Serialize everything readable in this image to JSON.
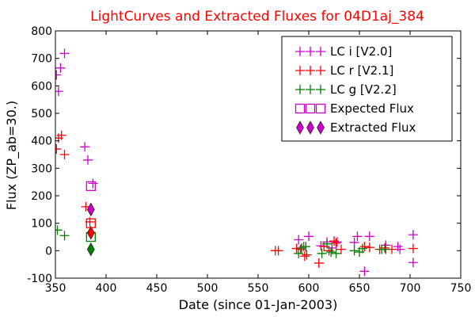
{
  "chart_data": {
    "type": "scatter",
    "title": "LightCurves and Extracted Fluxes for 04D1aj_384",
    "xlabel": "Date (since 01-Jan-2003)",
    "ylabel": "Flux (ZP_ab=30.)",
    "xlim": [
      350,
      750
    ],
    "ylim": [
      -100,
      800
    ],
    "xticks": [
      350,
      400,
      450,
      500,
      550,
      600,
      650,
      700,
      750
    ],
    "yticks": [
      -100,
      0,
      100,
      200,
      300,
      400,
      500,
      600,
      700,
      800
    ],
    "grid": false,
    "legend_position": "top-right",
    "colors": {
      "title": "#ff0000",
      "lc_i": "#cc00cc",
      "lc_r": "#ff0000",
      "lc_g": "#008000",
      "expected_i": "#cc00cc",
      "expected_r": "#ff0000",
      "expected_g": "#008000",
      "extracted_i": "#cc00cc",
      "extracted_r": "#ff0000",
      "extracted_g": "#008000"
    },
    "series": [
      {
        "name": "LC i [V2.0]",
        "marker": "plus",
        "color": "#cc00cc",
        "points": [
          [
            351,
            640
          ],
          [
            353,
            580
          ],
          [
            355,
            665
          ],
          [
            359,
            718
          ],
          [
            379,
            378
          ],
          [
            382,
            330
          ],
          [
            387,
            245
          ],
          [
            590,
            40
          ],
          [
            595,
            15
          ],
          [
            600,
            52
          ],
          [
            612,
            18
          ],
          [
            618,
            32
          ],
          [
            623,
            10
          ],
          [
            628,
            32
          ],
          [
            645,
            30
          ],
          [
            648,
            52
          ],
          [
            655,
            -75
          ],
          [
            660,
            52
          ],
          [
            676,
            20
          ],
          [
            688,
            15
          ],
          [
            690,
            5
          ],
          [
            703,
            58
          ],
          [
            703,
            -43
          ]
        ]
      },
      {
        "name": "LC r [V2.1]",
        "marker": "plus",
        "color": "#ff0000",
        "points": [
          [
            351,
            370
          ],
          [
            353,
            410
          ],
          [
            356,
            420
          ],
          [
            359,
            350
          ],
          [
            380,
            160
          ],
          [
            384,
            105
          ],
          [
            567,
            0
          ],
          [
            570,
            0
          ],
          [
            588,
            8
          ],
          [
            592,
            5
          ],
          [
            596,
            -20
          ],
          [
            598,
            -15
          ],
          [
            610,
            -45
          ],
          [
            615,
            15
          ],
          [
            620,
            0
          ],
          [
            625,
            35
          ],
          [
            627,
            28
          ],
          [
            632,
            5
          ],
          [
            655,
            15
          ],
          [
            660,
            12
          ],
          [
            670,
            5
          ],
          [
            675,
            10
          ],
          [
            682,
            5
          ],
          [
            703,
            8
          ]
        ]
      },
      {
        "name": "LC g [V2.2]",
        "marker": "plus",
        "color": "#008000",
        "points": [
          [
            352,
            75
          ],
          [
            359,
            55
          ],
          [
            590,
            -10
          ],
          [
            593,
            10
          ],
          [
            597,
            15
          ],
          [
            613,
            -10
          ],
          [
            618,
            25
          ],
          [
            622,
            -5
          ],
          [
            627,
            -10
          ],
          [
            645,
            0
          ],
          [
            650,
            -5
          ],
          [
            653,
            8
          ],
          [
            672,
            5
          ],
          [
            676,
            5
          ]
        ]
      },
      {
        "name": "Expected Flux",
        "marker": "square-open",
        "points": [
          {
            "x": 385,
            "y": 235,
            "color": "#cc00cc"
          },
          {
            "x": 385,
            "y": 100,
            "color": "#ff0000"
          },
          {
            "x": 385,
            "y": 50,
            "color": "#008000"
          }
        ]
      },
      {
        "name": "Extracted Flux",
        "marker": "diamond-filled",
        "points": [
          {
            "x": 385,
            "y": 150,
            "color": "#cc00cc"
          },
          {
            "x": 385,
            "y": 65,
            "color": "#ff0000"
          },
          {
            "x": 385,
            "y": 5,
            "color": "#008000"
          }
        ]
      }
    ],
    "legend": [
      {
        "label": "LC i [V2.0]",
        "marker": "plus",
        "color": "#cc00cc"
      },
      {
        "label": "LC r [V2.1]",
        "marker": "plus",
        "color": "#ff0000"
      },
      {
        "label": "LC g [V2.2]",
        "marker": "plus",
        "color": "#008000"
      },
      {
        "label": "Expected Flux",
        "marker": "square-open",
        "color": "#cc00cc"
      },
      {
        "label": "Extracted Flux",
        "marker": "diamond-filled",
        "color": "#cc00cc"
      }
    ]
  }
}
